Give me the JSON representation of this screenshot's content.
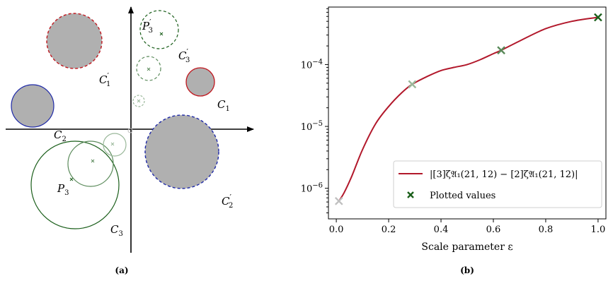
{
  "figure": {
    "panel_a": {
      "caption": "(a)",
      "circle_labels": {
        "C1": "C",
        "C1_sub": "1",
        "C1p": "C",
        "C1p_sub": "1",
        "C1p_prime": "′",
        "C2": "C",
        "C2_sub": "2",
        "C2p": "C",
        "C2p_sub": "2",
        "C2p_prime": "′",
        "C3": "C",
        "C3_sub": "3",
        "C3p": "C",
        "C3p_sub": "3",
        "C3p_prime": "′",
        "P3": "P",
        "P3_sub": "3",
        "P3p": "P",
        "P3p_sub": "3",
        "P3p_prime": "′"
      },
      "colors": {
        "disk_fill": "#b0b0b0",
        "C1": "#c0171e",
        "C2": "#1f2aa8",
        "C3": "#1a5e1a",
        "C3_mid": "#5a8a5a",
        "C3_light": "#9ab89a"
      }
    },
    "panel_b": {
      "caption": "(b)",
      "legend": {
        "curve_label": "|[3]ζ𝔄₁(21, 12) − [2]ζ𝔄₁(21, 12)|",
        "curve_color": "#b2182b",
        "points_label": "Plotted values",
        "points_color": "#1a5e1a"
      }
    }
  },
  "chart_data": {
    "type": "line",
    "xlabel": "Scale parameter ε",
    "ylabel": "",
    "xlim": [
      -0.03,
      1.03
    ],
    "ylim": [
      3.2e-07,
      0.00085
    ],
    "yscale": "log",
    "x_ticks": [
      "0.0",
      "0.2",
      "0.4",
      "0.6",
      "0.8",
      "1.0"
    ],
    "y_ticks": [
      {
        "base": "10",
        "exp": "−6",
        "value": 1e-06
      },
      {
        "base": "10",
        "exp": "−5",
        "value": 1e-05
      },
      {
        "base": "10",
        "exp": "−4",
        "value": 0.0001
      }
    ],
    "grid": false,
    "legend_position": "lower-right",
    "series": [
      {
        "name": "|[3]ζ𝔄₁(21, 12) − [2]ζ𝔄₁(21, 12)|",
        "kind": "line",
        "x": [
          0.01,
          0.03,
          0.06,
          0.1,
          0.15,
          0.2,
          0.25,
          0.29,
          0.35,
          0.4,
          0.45,
          0.5,
          0.55,
          0.6,
          0.63,
          0.7,
          0.8,
          0.9,
          1.0
        ],
        "y": [
          6.2e-07,
          8.5e-07,
          1.6e-06,
          4.2e-06,
          1.1e-05,
          2.1e-05,
          3.5e-05,
          4.8e-05,
          6.5e-05,
          8e-05,
          9e-05,
          0.0001,
          0.00012,
          0.00015,
          0.00017,
          0.00024,
          0.00038,
          0.0005,
          0.00058
        ]
      },
      {
        "name": "Plotted values",
        "kind": "marker",
        "x": [
          0.01,
          0.29,
          0.63,
          1.0
        ],
        "y": [
          6.2e-07,
          4.8e-05,
          0.00017,
          0.00058
        ],
        "marker_colors": [
          "#c0c0c0",
          "#9ab89a",
          "#5a8a5a",
          "#1a5e1a"
        ]
      }
    ]
  }
}
